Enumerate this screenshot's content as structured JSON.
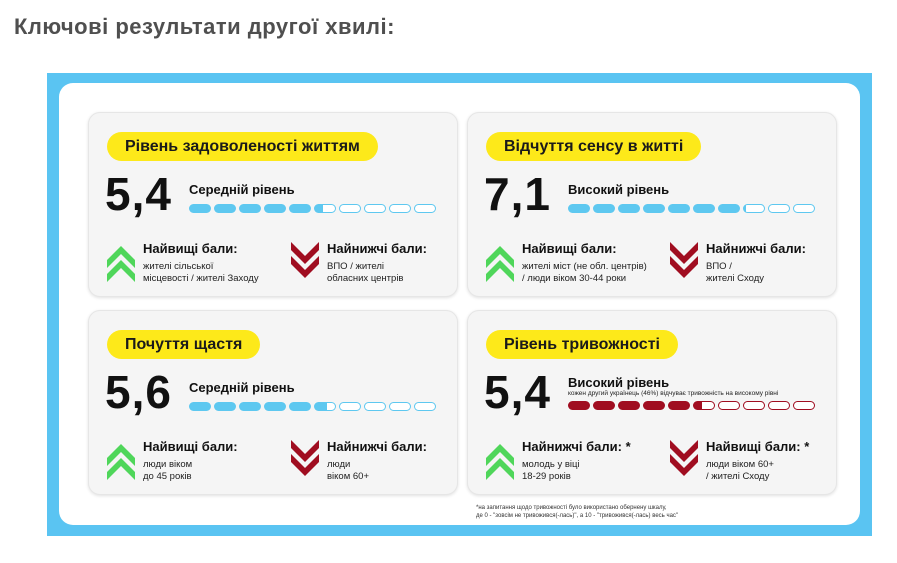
{
  "page": {
    "heading": "Ключові результати другої хвилі:"
  },
  "colors": {
    "frame": "#5ac4f2",
    "pill": "#fde91a",
    "bar_blue": "#5ec8f0",
    "bar_red": "#a00d20",
    "arrow_green": "#4fd65a",
    "arrow_red": "#a00d20"
  },
  "cards": [
    {
      "title": "Рівень задоволеності життям",
      "score": "5,4",
      "level": "Середній рівень",
      "note": "",
      "bar": {
        "value": 5.4,
        "max": 10,
        "color": "blue"
      },
      "up": {
        "icon": "chevron-up-green-icon",
        "label": "Найвищі бали:",
        "text": "жителі сільської\nмісцевості / жителі Заходу"
      },
      "down": {
        "icon": "chevron-down-red-icon",
        "label": "Найнижчі бали:",
        "text": "ВПО / жителі\nобласних центрів"
      }
    },
    {
      "title": "Відчуття сенсу в житті",
      "score": "7,1",
      "level": "Високий рівень",
      "note": "",
      "bar": {
        "value": 7.1,
        "max": 10,
        "color": "blue"
      },
      "up": {
        "icon": "chevron-up-green-icon",
        "label": "Найвищі бали:",
        "text": "жителі міст (не обл. центрів)\n/ люди віком 30-44 роки"
      },
      "down": {
        "icon": "chevron-down-red-icon",
        "label": "Найнижчі бали:",
        "text": "ВПО /\nжителі Сходу"
      }
    },
    {
      "title": "Почуття щастя",
      "score": "5,6",
      "level": "Середній рівень",
      "note": "",
      "bar": {
        "value": 5.6,
        "max": 10,
        "color": "blue"
      },
      "up": {
        "icon": "chevron-up-green-icon",
        "label": "Найвищі бали:",
        "text": "люди віком\nдо 45 років"
      },
      "down": {
        "icon": "chevron-down-red-icon",
        "label": "Найнижчі бали:",
        "text": "люди\nвіком 60+"
      }
    },
    {
      "title": "Рівень тривожності",
      "score": "5,4",
      "level": "Високий рівень",
      "note": "кожен другий українець (46%) відчуває тривожність на високому рівні",
      "bar": {
        "value": 5.4,
        "max": 10,
        "color": "red"
      },
      "up": {
        "icon": "chevron-up-green-icon",
        "label": "Найнижчі бали: *",
        "text": "молодь у віці\n18-29 років"
      },
      "down": {
        "icon": "chevron-down-red-icon",
        "label": "Найвищі бали: *",
        "text": "люди віком 60+\n/ жителі Сходу"
      }
    }
  ],
  "footnote": "*на запитання щодо тривожності було використано обернену шкалу,\nде 0 - \"зовсім не тривожився(-лась)\", а 10 - \"тривожився(-лась) весь час\""
}
